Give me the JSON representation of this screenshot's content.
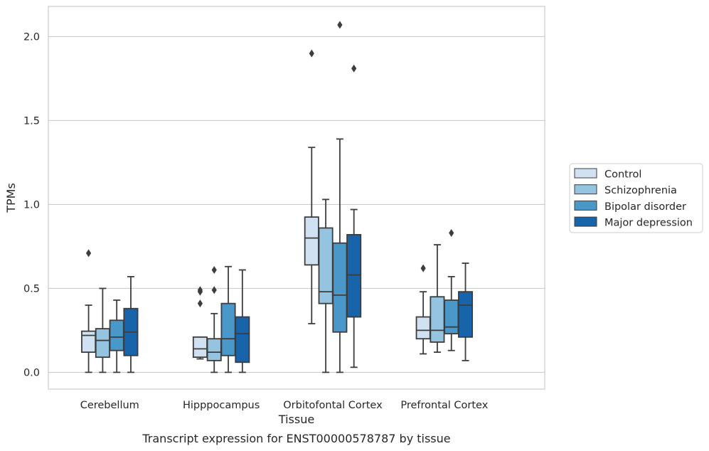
{
  "chart_data": {
    "type": "box",
    "xlabel": "Tissue",
    "ylabel": "TPMs",
    "caption": "Transcript expression for ENST00000578787 by tissue",
    "ylim": [
      -0.1,
      2.18
    ],
    "yticks": [
      0.0,
      0.5,
      1.0,
      1.5,
      2.0
    ],
    "ytick_labels": [
      "0.0",
      "0.5",
      "1.0",
      "1.5",
      "2.0"
    ],
    "grid": "horizontal",
    "legend_position": "right",
    "categories": [
      "Cerebellum",
      "Hipppocampus",
      "Orbitofontal Cortex",
      "Prefrontal Cortex"
    ],
    "series": [
      {
        "name": "Control",
        "color": "#d0e1f2",
        "boxes": [
          {
            "whislo": 0.0,
            "q1": 0.12,
            "med": 0.22,
            "q3": 0.245,
            "whishi": 0.4,
            "fliers": [
              0.71
            ]
          },
          {
            "whislo": 0.08,
            "q1": 0.09,
            "med": 0.14,
            "q3": 0.21,
            "whishi": 0.21,
            "fliers": [
              0.41,
              0.48,
              0.49
            ]
          },
          {
            "whislo": 0.29,
            "q1": 0.64,
            "med": 0.8,
            "q3": 0.925,
            "whishi": 1.34,
            "fliers": [
              1.9
            ]
          },
          {
            "whislo": 0.11,
            "q1": 0.2,
            "med": 0.25,
            "q3": 0.33,
            "whishi": 0.48,
            "fliers": [
              0.62
            ]
          }
        ]
      },
      {
        "name": "Schizophrenia",
        "color": "#94c4df",
        "boxes": [
          {
            "whislo": 0.0,
            "q1": 0.09,
            "med": 0.19,
            "q3": 0.26,
            "whishi": 0.5,
            "fliers": []
          },
          {
            "whislo": 0.0,
            "q1": 0.07,
            "med": 0.12,
            "q3": 0.2,
            "whishi": 0.35,
            "fliers": [
              0.49,
              0.61
            ]
          },
          {
            "whislo": 0.0,
            "q1": 0.41,
            "med": 0.48,
            "q3": 0.86,
            "whishi": 1.03,
            "fliers": []
          },
          {
            "whislo": 0.12,
            "q1": 0.18,
            "med": 0.25,
            "q3": 0.45,
            "whishi": 0.76,
            "fliers": []
          }
        ]
      },
      {
        "name": "Bipolar disorder",
        "color": "#4a98c9",
        "boxes": [
          {
            "whislo": 0.0,
            "q1": 0.13,
            "med": 0.21,
            "q3": 0.31,
            "whishi": 0.43,
            "fliers": []
          },
          {
            "whislo": 0.0,
            "q1": 0.1,
            "med": 0.2,
            "q3": 0.41,
            "whishi": 0.63,
            "fliers": []
          },
          {
            "whislo": 0.0,
            "q1": 0.24,
            "med": 0.46,
            "q3": 0.77,
            "whishi": 1.39,
            "fliers": [
              2.07
            ]
          },
          {
            "whislo": 0.13,
            "q1": 0.23,
            "med": 0.27,
            "q3": 0.43,
            "whishi": 0.57,
            "fliers": [
              0.83
            ]
          }
        ]
      },
      {
        "name": "Major depression",
        "color": "#1764ab",
        "boxes": [
          {
            "whislo": 0.0,
            "q1": 0.1,
            "med": 0.24,
            "q3": 0.38,
            "whishi": 0.57,
            "fliers": []
          },
          {
            "whislo": 0.0,
            "q1": 0.06,
            "med": 0.23,
            "q3": 0.33,
            "whishi": 0.61,
            "fliers": []
          },
          {
            "whislo": 0.03,
            "q1": 0.33,
            "med": 0.58,
            "q3": 0.82,
            "whishi": 0.97,
            "fliers": [
              1.81
            ]
          },
          {
            "whislo": 0.07,
            "q1": 0.21,
            "med": 0.4,
            "q3": 0.48,
            "whishi": 0.65,
            "fliers": []
          }
        ]
      }
    ]
  }
}
